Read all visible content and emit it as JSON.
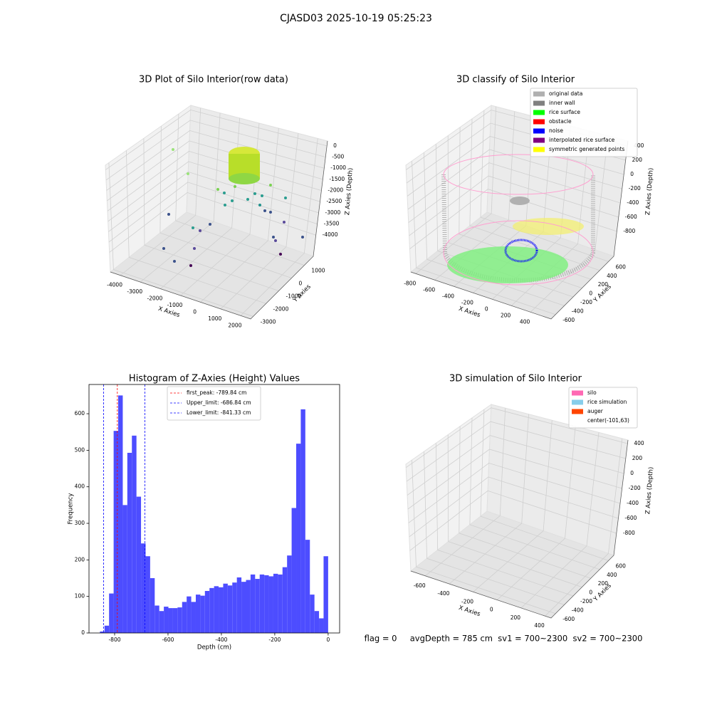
{
  "title": "CJASD03 2025-10-19 05:25:23",
  "chart_data": [
    {
      "type": "scatter3d",
      "title": "3D Plot of Silo Interior(row data)",
      "xlabel": "X Axies",
      "ylabel": "Y Axies",
      "zlabel": "Z Axies (Depth)",
      "xlim": [
        -4500,
        2500
      ],
      "xticks": [
        -4000,
        -3000,
        -2000,
        -1000,
        0,
        1000,
        2000
      ],
      "ylim": [
        -3200,
        1700
      ],
      "yticks": [
        -3000,
        -2000,
        -1000,
        0,
        1000
      ],
      "zlim": [
        -4950,
        220
      ],
      "zticks": [
        0,
        -500,
        -1000,
        -1500,
        -2000,
        -2500,
        -3000,
        -3500,
        -4000
      ]
    },
    {
      "type": "scatter3d",
      "title": "3D classify of Silo Interior",
      "xlabel": "X Axies",
      "ylabel": "Y Axies",
      "zlabel": "Z Axies (Depth)",
      "xlim": [
        -850,
        615
      ],
      "xticks": [
        -800,
        -600,
        -400,
        -200,
        0,
        200,
        400
      ],
      "ylim": [
        -700,
        720
      ],
      "yticks": [
        -600,
        -400,
        -200,
        0,
        200,
        400,
        600
      ],
      "zlim": [
        -1150,
        470
      ],
      "zticks": [
        -800,
        -600,
        -400,
        -200,
        0,
        200,
        400
      ],
      "legend": [
        {
          "name": "original data",
          "color": "#b0b0b0"
        },
        {
          "name": "inner wall",
          "color": "#808080"
        },
        {
          "name": "rice surface",
          "color": "#00ff00"
        },
        {
          "name": "obstacle",
          "color": "#ff0000"
        },
        {
          "name": "noise",
          "color": "#0000ff"
        },
        {
          "name": "interpolated rice surface",
          "color": "#800080"
        },
        {
          "name": "symmetric generated points",
          "color": "#ffff00"
        }
      ]
    },
    {
      "type": "histogram",
      "title": "Histogram of Z-Axies (Height) Values",
      "xlabel": "Depth (cm)",
      "ylabel": "Frequency",
      "color": "#4d4dff",
      "bins": [
        -855,
        -837.9,
        -820.8,
        -803.7,
        -786.6,
        -769.5,
        -752.4,
        -735.3,
        -718.2,
        -701.1,
        -684,
        -666.9,
        -649.8,
        -632.7,
        -615.6,
        -598.5,
        -581.4,
        -564.3,
        -547.2,
        -530.1,
        -513,
        -495.9,
        -478.8,
        -461.7,
        -444.6,
        -427.5,
        -410.4,
        -393.3,
        -376.2,
        -359.1,
        -342,
        -324.9,
        -307.8,
        -290.7,
        -273.6,
        -256.5,
        -239.4,
        -222.3,
        -205.2,
        -188.1,
        -171,
        -153.9,
        -136.8,
        -119.7,
        -102.6,
        -85.5,
        -68.4,
        -51.3,
        -34.2,
        -17.1,
        0
      ],
      "values": [
        4,
        20,
        108,
        553,
        650,
        350,
        493,
        540,
        373,
        245,
        210,
        150,
        75,
        60,
        72,
        68,
        68,
        70,
        85,
        100,
        85,
        105,
        102,
        115,
        123,
        128,
        125,
        135,
        130,
        138,
        152,
        140,
        145,
        160,
        148,
        160,
        158,
        155,
        162,
        160,
        180,
        212,
        342,
        518,
        612,
        255,
        105,
        60,
        40,
        210
      ],
      "xlim": [
        -896,
        43
      ],
      "xticks": [
        -800,
        -600,
        -400,
        -200,
        0
      ],
      "ylim": [
        0,
        680
      ],
      "yticks": [
        0,
        100,
        200,
        300,
        400,
        500,
        600
      ],
      "vlines": [
        {
          "name": "first_peak: -789.84 cm",
          "value": -789.84,
          "color": "#ff0000"
        },
        {
          "name": "Upper_limit: -686.84 cm",
          "value": -686.84,
          "color": "#0000ff"
        },
        {
          "name": "Lower_limit: -841.33 cm",
          "value": -841.33,
          "color": "#0000ff"
        }
      ]
    },
    {
      "type": "surface3d",
      "title": "3D simulation of Silo Interior",
      "xlabel": "X Axies",
      "ylabel": "Y Axies",
      "zlabel": "Z Axies (Depth)",
      "xlim": [
        -720,
        450
      ],
      "xticks": [
        -600,
        -400,
        -200,
        0,
        200,
        400
      ],
      "ylim": [
        -700,
        720
      ],
      "yticks": [
        -600,
        -400,
        -200,
        0,
        200,
        400,
        600
      ],
      "zlim": [
        -1095,
        448
      ],
      "zticks": [
        -800,
        -600,
        -400,
        -200,
        0,
        200,
        400
      ],
      "legend": [
        {
          "name": "silo",
          "color": "#ff69b4"
        },
        {
          "name": "rice simulation",
          "color": "#87ceeb"
        },
        {
          "name": "auger",
          "color": "#ff4500"
        },
        {
          "name": "center(-101,63)",
          "color": "none"
        }
      ],
      "annotation": "flag = 0     avgDepth = 785 cm  sv1 = 700~2300  sv2 = 700~2300"
    }
  ]
}
